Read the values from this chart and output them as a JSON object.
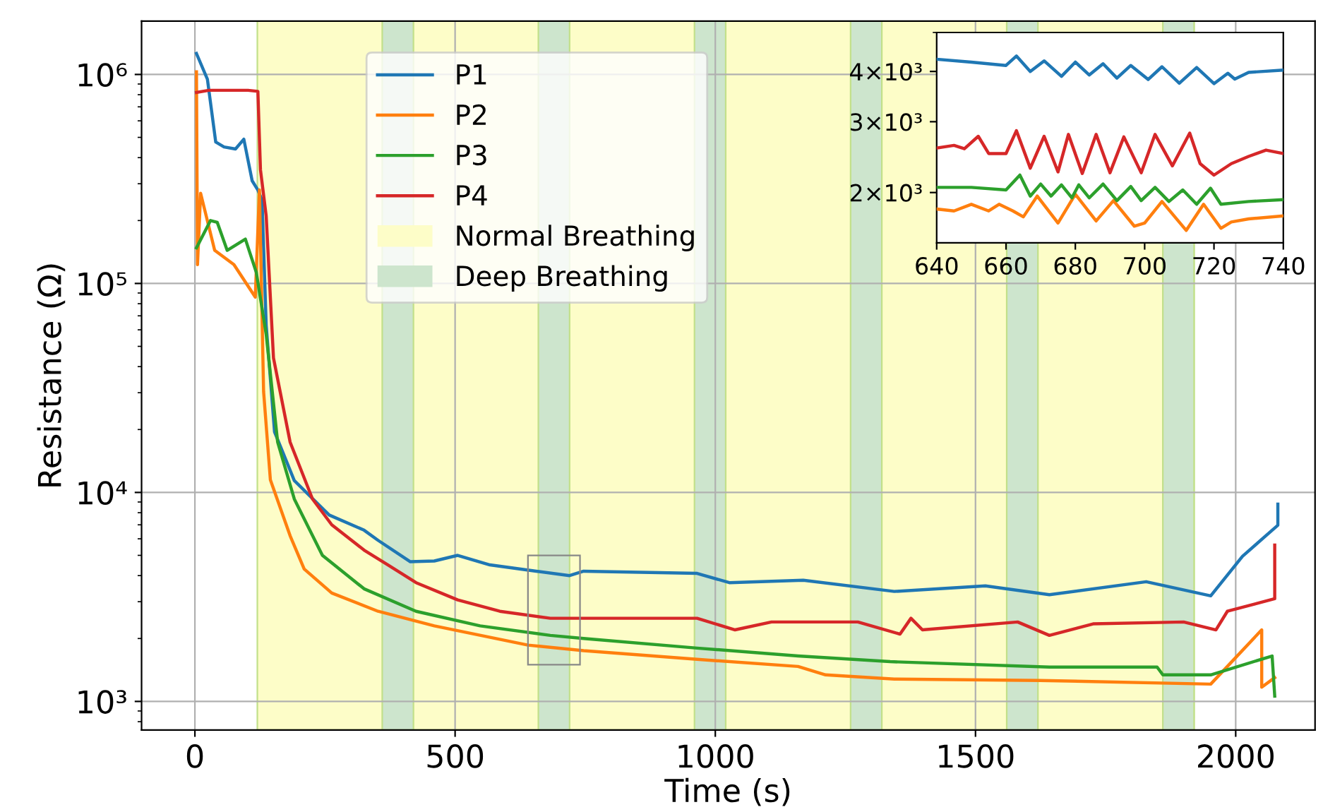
{
  "chart_data": [
    {
      "type": "line",
      "xlabel": "Time (s)",
      "ylabel": "Resistance (Ω)",
      "log": "y",
      "grid": true,
      "legend": "top left",
      "line_style": "solid",
      "xlim": [
        -102.5,
        2152.5
      ],
      "xticks": [
        0,
        500,
        1000,
        1500,
        2000
      ],
      "ylim": [
        730,
        1800000
      ],
      "yticks": [
        {
          "value": 1000,
          "label": "10³"
        },
        {
          "value": 10000,
          "label": "10⁴"
        },
        {
          "value": 100000,
          "label": "10⁵"
        },
        {
          "value": 1000000,
          "label": "10⁶"
        }
      ],
      "bands": [
        {
          "axis": "x",
          "from": 120,
          "to": 1920,
          "label": "Normal Breathing",
          "color": "#fdfdc8"
        },
        {
          "axis": "x",
          "from": 360,
          "to": 420,
          "label": "Deep Breathing",
          "color": "#cde5cd"
        },
        {
          "axis": "x",
          "from": 660,
          "to": 720,
          "color": "#cde5cd"
        },
        {
          "axis": "x",
          "from": 960,
          "to": 1020,
          "color": "#cde5cd"
        },
        {
          "axis": "x",
          "from": 1260,
          "to": 1320,
          "color": "#cde5cd"
        },
        {
          "axis": "x",
          "from": 1560,
          "to": 1620,
          "color": "#cde5cd"
        },
        {
          "axis": "x",
          "from": 1860,
          "to": 1920,
          "color": "#cde5cd"
        }
      ],
      "series": [
        {
          "name": "P1",
          "color": "#1f77b4",
          "x": [
            3,
            24,
            40,
            56,
            78,
            94,
            110,
            121,
            129,
            137,
            153,
            191,
            258,
            325,
            352,
            414,
            460,
            505,
            567,
            656,
            720,
            747,
            965,
            1027,
            1169,
            1344,
            1519,
            1642,
            1828,
            1952,
            2013,
            2081,
            2081
          ],
          "values": [
            1260000,
            950000,
            475000,
            450000,
            440000,
            490000,
            310000,
            280000,
            250000,
            63000,
            19500,
            11400,
            7800,
            6600,
            5900,
            4660,
            4700,
            5000,
            4500,
            4200,
            4000,
            4200,
            4100,
            3700,
            3800,
            3360,
            3570,
            3240,
            3740,
            3200,
            4950,
            6970,
            8800
          ]
        },
        {
          "name": "P2",
          "color": "#ff7f0e",
          "x": [
            3,
            5,
            11,
            38,
            75,
            116,
            124,
            132,
            145,
            183,
            210,
            263,
            352,
            460,
            640,
            747,
            965,
            1159,
            1212,
            1344,
            1624,
            1952,
            2050,
            2050,
            2075
          ],
          "values": [
            1030000,
            123000,
            270000,
            144000,
            123000,
            86000,
            280000,
            30400,
            11500,
            6200,
            4300,
            3300,
            2700,
            2300,
            1860,
            1750,
            1590,
            1470,
            1340,
            1280,
            1260,
            1210,
            2200,
            1170,
            1300
          ]
        },
        {
          "name": "P3",
          "color": "#2ca02c",
          "x": [
            3,
            30,
            43,
            62,
            97,
            118,
            137,
            159,
            191,
            245,
            325,
            425,
            548,
            683,
            747,
            965,
            1159,
            1336,
            1642,
            1849,
            1860,
            1952,
            2070,
            2075
          ],
          "values": [
            148000,
            200000,
            196000,
            144000,
            163000,
            113000,
            57000,
            17400,
            9300,
            5000,
            3460,
            2700,
            2300,
            2070,
            2000,
            1800,
            1650,
            1550,
            1460,
            1460,
            1340,
            1340,
            1650,
            1060
          ]
        },
        {
          "name": "P4",
          "color": "#d62728",
          "x": [
            3,
            27,
            102,
            121,
            126,
            137,
            151,
            183,
            226,
            263,
            325,
            371,
            425,
            505,
            586,
            683,
            747,
            965,
            1038,
            1108,
            1274,
            1355,
            1376,
            1398,
            1581,
            1642,
            1726,
            1900,
            1962,
            1984,
            2075,
            2075
          ],
          "values": [
            820000,
            840000,
            840000,
            830000,
            350000,
            210000,
            44000,
            17400,
            9300,
            7000,
            5300,
            4500,
            3700,
            3060,
            2700,
            2500,
            2500,
            2500,
            2200,
            2400,
            2400,
            2100,
            2500,
            2200,
            2400,
            2070,
            2350,
            2400,
            2200,
            2700,
            3100,
            5600
          ]
        }
      ]
    },
    {
      "type": "line",
      "log": "y",
      "grid": false,
      "line_style": "solid",
      "xlim": [
        640,
        740
      ],
      "xticks": [
        640,
        660,
        680,
        700,
        720,
        740
      ],
      "ylim": [
        1500,
        5000
      ],
      "yticks": [
        {
          "value": 2000,
          "label": "2×10³"
        },
        {
          "value": 3000,
          "label": "3×10³"
        },
        {
          "value": 4000,
          "label": "4×10³"
        }
      ],
      "series": [
        {
          "color": "#1f77b4",
          "x": [
            640,
            650,
            660,
            663,
            667,
            671,
            676,
            680,
            684,
            688,
            692,
            696,
            701,
            705,
            710,
            715,
            720,
            724,
            726,
            730,
            740
          ],
          "values": [
            4290,
            4220,
            4140,
            4370,
            4000,
            4250,
            3890,
            4220,
            3920,
            4180,
            3850,
            4140,
            3820,
            4110,
            3740,
            4090,
            3730,
            3960,
            3830,
            3980,
            4030
          ]
        },
        {
          "color": "#ff7f0e",
          "x": [
            640,
            645,
            650,
            655,
            658,
            662,
            665,
            669,
            675,
            680,
            686,
            691,
            697,
            700,
            705,
            712,
            717,
            722,
            725,
            730,
            740
          ],
          "values": [
            1820,
            1800,
            1870,
            1800,
            1870,
            1800,
            1740,
            1960,
            1680,
            1980,
            1700,
            1910,
            1650,
            1680,
            1900,
            1610,
            1870,
            1630,
            1690,
            1720,
            1750
          ]
        },
        {
          "color": "#2ca02c",
          "x": [
            640,
            650,
            660,
            664,
            667,
            670,
            673,
            676,
            679,
            681,
            684,
            688,
            692,
            696,
            699,
            703,
            707,
            711,
            715,
            719,
            722,
            730,
            740
          ],
          "values": [
            2060,
            2060,
            2030,
            2210,
            1960,
            2100,
            1960,
            2090,
            1940,
            2090,
            1940,
            2100,
            1910,
            2070,
            1910,
            2060,
            1900,
            2030,
            1870,
            2050,
            1870,
            1900,
            1920
          ]
        },
        {
          "color": "#d62728",
          "x": [
            640,
            645,
            648,
            652,
            655,
            660,
            663,
            667,
            671,
            675,
            678,
            682,
            686,
            690,
            694,
            699,
            703,
            708,
            713,
            716,
            720,
            725,
            730,
            735,
            740
          ],
          "values": [
            2580,
            2620,
            2570,
            2760,
            2500,
            2500,
            2850,
            2300,
            2760,
            2250,
            2790,
            2230,
            2790,
            2240,
            2750,
            2240,
            2790,
            2330,
            2810,
            2360,
            2210,
            2360,
            2460,
            2550,
            2500
          ]
        }
      ]
    }
  ]
}
